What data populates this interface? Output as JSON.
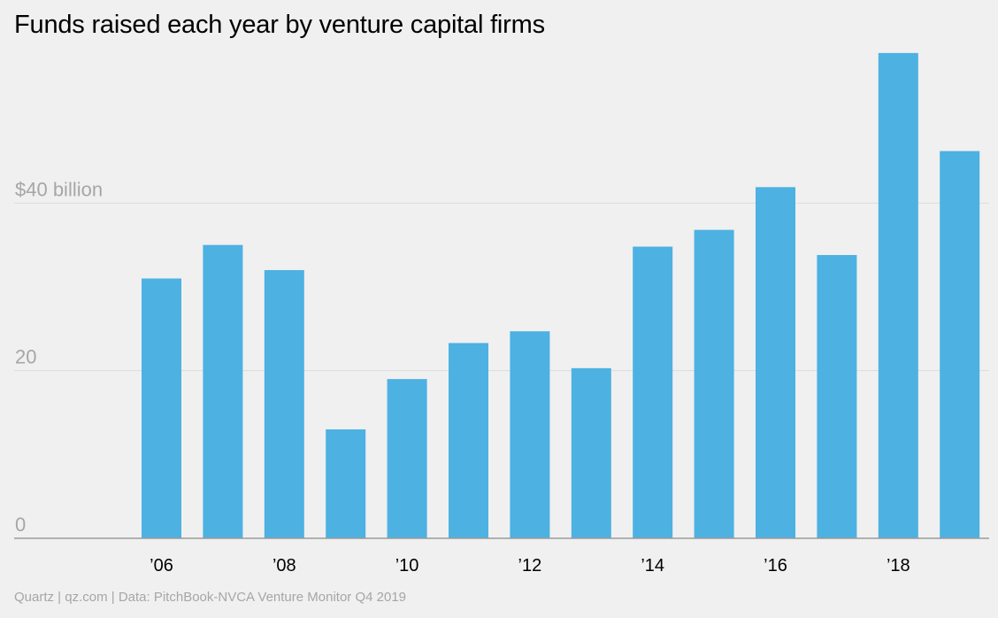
{
  "chart_data": {
    "type": "bar",
    "title": "Funds raised each year by venture capital firms",
    "xlabel": "",
    "ylabel": "",
    "categories": [
      "2006",
      "2007",
      "2008",
      "2009",
      "2010",
      "2011",
      "2012",
      "2013",
      "2014",
      "2015",
      "2016",
      "2017",
      "2018",
      "2019"
    ],
    "values": [
      31,
      35,
      32,
      13,
      19,
      23.3,
      24.7,
      20.3,
      34.8,
      36.8,
      41.9,
      33.8,
      57.9,
      46.2
    ],
    "ylim": [
      0,
      60
    ],
    "yticks": [
      0,
      20,
      40
    ],
    "ytick_labels": [
      "0",
      "20",
      "$40 billion"
    ],
    "xtick_labels": [
      "’06",
      "",
      "’08",
      "",
      "’10",
      "",
      "’12",
      "",
      "’14",
      "",
      "’16",
      "",
      "’18",
      ""
    ],
    "grid": true,
    "bar_color": "#4db1e2"
  },
  "footer": {
    "source": "Quartz | qz.com | Data: PitchBook-NVCA Venture Monitor Q4 2019"
  }
}
